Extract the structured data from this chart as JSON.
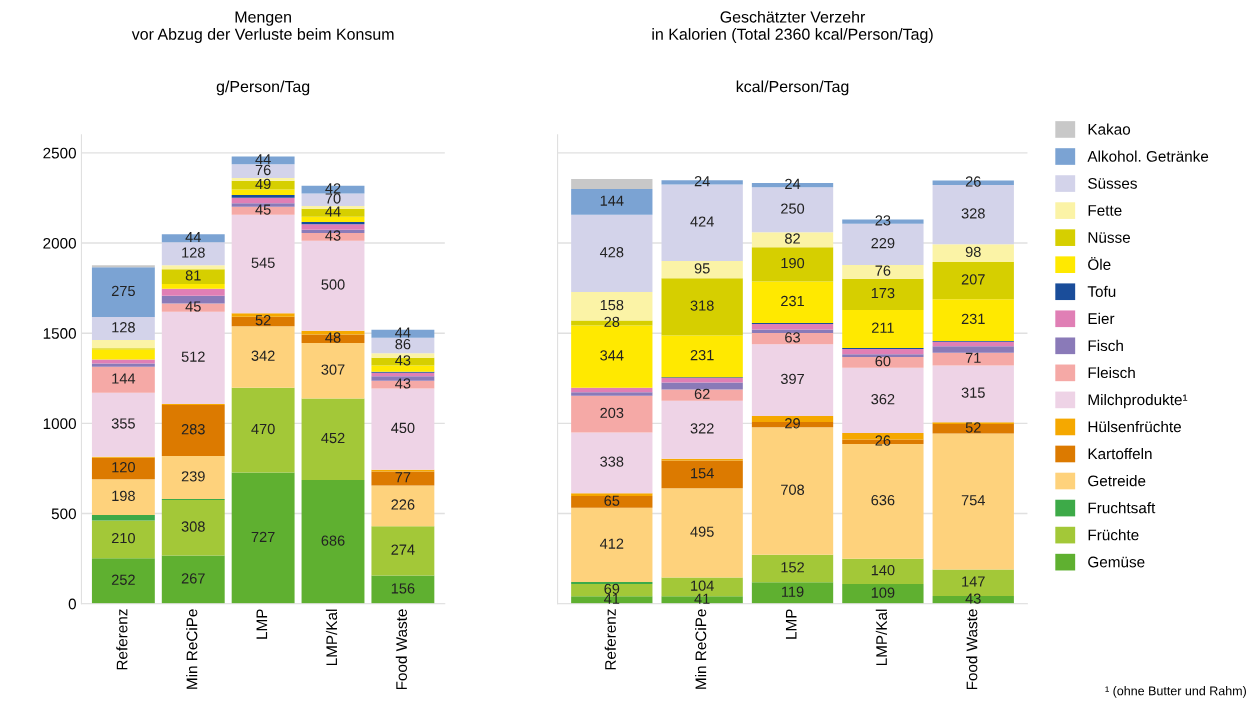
{
  "chart_data": [
    {
      "type": "bar",
      "stacked": true,
      "title": "Mengen\nvor Abzug der Verluste beim Konsum",
      "subtitle": "g/Person/Tag",
      "categories": [
        "Referenz",
        "Min ReCiPe",
        "LMP",
        "LMP/Kal",
        "Food Waste"
      ],
      "ylim": [
        0,
        2600
      ],
      "yticks": [
        0,
        500,
        1000,
        1500,
        2000,
        2500
      ],
      "grid": "y",
      "legend": false,
      "series": [
        {
          "color": "#5fb030",
          "values": [
            252,
            267,
            727,
            686,
            156
          ],
          "value_labels": [
            "252",
            "267",
            "727",
            "686",
            "156"
          ]
        },
        {
          "color": "#a3c838",
          "values": [
            210,
            308,
            470,
            452,
            274
          ],
          "value_labels": [
            "210",
            "308",
            "470",
            "452",
            "274"
          ]
        },
        {
          "color": "#3daa48",
          "values": [
            30,
            5,
            null,
            null,
            null
          ]
        },
        {
          "color": "#fed27c",
          "values": [
            198,
            239,
            342,
            307,
            226
          ],
          "value_labels": [
            "198",
            "239",
            "342",
            "307",
            "226"
          ]
        },
        {
          "color": "#dc7a00",
          "values": [
            120,
            283,
            52,
            48,
            77
          ],
          "value_labels": [
            "120",
            "283",
            "52",
            "48",
            "77"
          ]
        },
        {
          "color": "#f5a800",
          "values": [
            5,
            5,
            20,
            20,
            10
          ]
        },
        {
          "color": "#eed3e6",
          "values": [
            355,
            512,
            545,
            500,
            450
          ],
          "value_labels": [
            "355",
            "512",
            "545",
            "500",
            "450"
          ]
        },
        {
          "color": "#f5a9a6",
          "values": [
            144,
            45,
            45,
            43,
            43
          ],
          "value_labels": [
            "144",
            "45",
            "45",
            "43",
            "43"
          ]
        },
        {
          "color": "#8a7ab8",
          "values": [
            18,
            44,
            20,
            18,
            25
          ]
        },
        {
          "color": "#e07fb5",
          "values": [
            22,
            38,
            30,
            30,
            20
          ]
        },
        {
          "color": "#1a4d9a",
          "values": [
            null,
            null,
            15,
            12,
            5
          ]
        },
        {
          "color": "#ffe900",
          "values": [
            55,
            27,
            30,
            30,
            35
          ]
        },
        {
          "color": "#d6cf00",
          "values": [
            8,
            81,
            49,
            44,
            43
          ],
          "value_labels": [
            null,
            "81",
            "49",
            "44",
            "43"
          ]
        },
        {
          "color": "#fbf3a6",
          "values": [
            45,
            22,
            15,
            15,
            25
          ]
        },
        {
          "color": "#d3d3ea",
          "values": [
            128,
            128,
            76,
            70,
            86
          ],
          "value_labels": [
            "128",
            "128",
            "76",
            "70",
            "86"
          ]
        },
        {
          "color": "#7ba3d3",
          "values": [
            275,
            44,
            44,
            42,
            44
          ],
          "value_labels": [
            "275",
            "44",
            "44",
            "42",
            "44"
          ]
        },
        {
          "color": "#c8c8c8",
          "values": [
            12,
            null,
            null,
            null,
            null
          ]
        }
      ]
    },
    {
      "type": "bar",
      "stacked": true,
      "title": "Geschätzter Verzehr\nin Kalorien (Total 2360 kcal/Person/Tag)",
      "subtitle": "kcal/Person/Tag",
      "categories": [
        "Referenz",
        "Min ReCiPe",
        "LMP",
        "LMP/Kal",
        "Food Waste"
      ],
      "ylim": [
        0,
        2600
      ],
      "yticks": [
        0,
        500,
        1000,
        1500,
        2000,
        2500
      ],
      "tick_labels": "x",
      "grid": "y",
      "legend": "right",
      "annotations": [
        "¹ (ohne Butter und Rahm)"
      ],
      "series": [
        {
          "name": "Gemüse",
          "color": "#5fb030",
          "values": [
            41,
            41,
            119,
            109,
            43
          ],
          "value_labels": [
            "41",
            "41",
            "119",
            "109",
            "43"
          ]
        },
        {
          "name": "Früchte",
          "color": "#a3c838",
          "values": [
            69,
            104,
            152,
            140,
            147
          ],
          "value_labels": [
            "69",
            "104",
            "152",
            "140",
            "147"
          ]
        },
        {
          "name": "Fruchtsaft",
          "color": "#3daa48",
          "values": [
            10,
            null,
            null,
            null,
            null
          ]
        },
        {
          "name": "Getreide",
          "color": "#fed27c",
          "values": [
            412,
            495,
            708,
            636,
            754
          ],
          "value_labels": [
            "412",
            "495",
            "708",
            "636",
            "754"
          ]
        },
        {
          "name": "Kartoffeln",
          "color": "#dc7a00",
          "values": [
            65,
            154,
            29,
            26,
            52
          ],
          "value_labels": [
            "65",
            "154",
            "29",
            "26",
            "52"
          ]
        },
        {
          "name": "Hülsenfrüchte",
          "color": "#f5a800",
          "values": [
            15,
            10,
            33,
            35,
            10
          ]
        },
        {
          "name": "Milchprodukte¹",
          "color": "#eed3e6",
          "values": [
            338,
            322,
            397,
            362,
            315
          ],
          "value_labels": [
            "338",
            "322",
            "397",
            "362",
            "315"
          ]
        },
        {
          "name": "Fleisch",
          "color": "#f5a9a6",
          "values": [
            203,
            62,
            63,
            60,
            71
          ],
          "value_labels": [
            "203",
            "62",
            "63",
            "60",
            "71"
          ]
        },
        {
          "name": "Fisch",
          "color": "#8a7ab8",
          "values": [
            20,
            38,
            20,
            15,
            35
          ]
        },
        {
          "name": "Eier",
          "color": "#e07fb5",
          "values": [
            25,
            25,
            30,
            30,
            25
          ]
        },
        {
          "name": "Tofu",
          "color": "#1a4d9a",
          "values": [
            null,
            5,
            5,
            5,
            5
          ]
        },
        {
          "name": "Öle",
          "color": "#ffe900",
          "values": [
            344,
            231,
            231,
            211,
            231
          ],
          "value_labels": [
            "344",
            "231",
            "231",
            "211",
            "231"
          ]
        },
        {
          "name": "Nüsse",
          "color": "#d6cf00",
          "values": [
            28,
            318,
            190,
            173,
            207
          ],
          "value_labels": [
            "28",
            "318",
            "190",
            "173",
            "207"
          ]
        },
        {
          "name": "Fette",
          "color": "#fbf3a6",
          "values": [
            158,
            95,
            82,
            76,
            98
          ],
          "value_labels": [
            "158",
            "95",
            "82",
            "76",
            "98"
          ]
        },
        {
          "name": "Süsses",
          "color": "#d3d3ea",
          "values": [
            428,
            424,
            250,
            229,
            328
          ],
          "value_labels": [
            "428",
            "424",
            "250",
            "229",
            "328"
          ]
        },
        {
          "name": "Alkohol. Getränke",
          "color": "#7ba3d3",
          "values": [
            144,
            24,
            24,
            23,
            26
          ],
          "value_labels": [
            "144",
            "24",
            "24",
            "23",
            "26"
          ]
        },
        {
          "name": "Kakao",
          "color": "#c8c8c8",
          "values": [
            55,
            null,
            null,
            null,
            null
          ]
        }
      ]
    }
  ]
}
